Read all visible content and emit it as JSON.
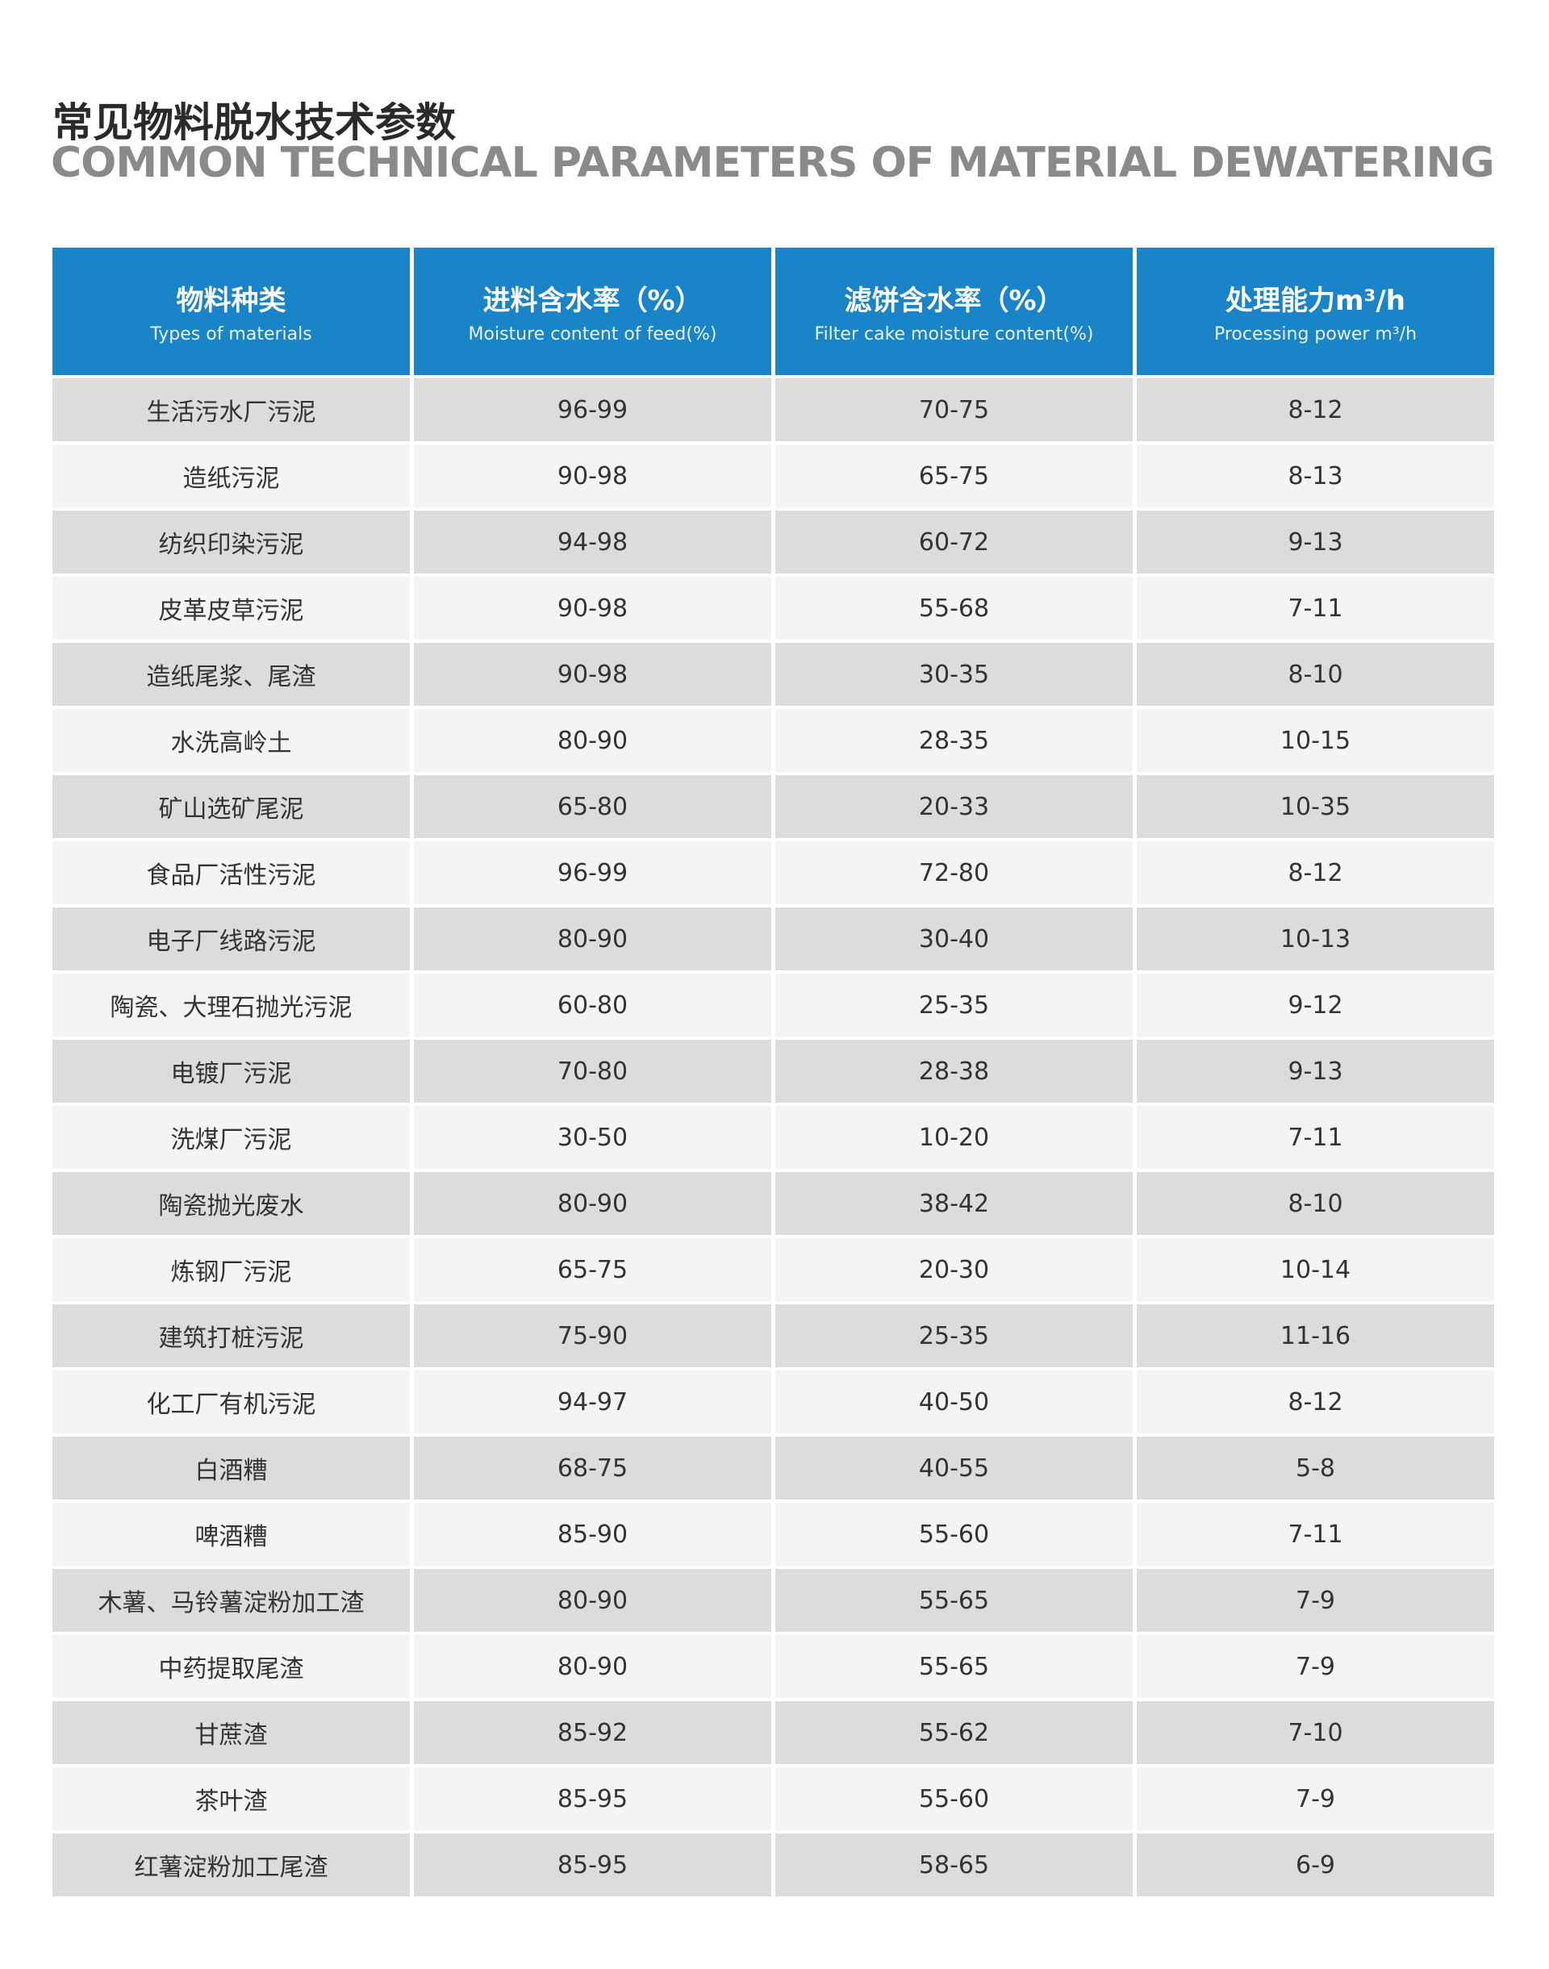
{
  "header": {
    "title": "常见物料脱水技术参数",
    "subtitle": "COMMON TECHNICAL PARAMETERS OF MATERIAL DEWATERING"
  },
  "table": {
    "columns": [
      {
        "zh": "物料种类",
        "en": "Types of materials"
      },
      {
        "zh": "进料含水率（%）",
        "en": "Moisture content of feed(%)"
      },
      {
        "zh": "滤饼含水率（%）",
        "en": "Filter cake moisture content(%)"
      },
      {
        "zh": "处理能力m³/h",
        "en": "Processing power m³/h"
      }
    ],
    "rows": [
      [
        "生活污水厂污泥",
        "96-99",
        "70-75",
        "8-12"
      ],
      [
        "造纸污泥",
        "90-98",
        "65-75",
        "8-13"
      ],
      [
        "纺织印染污泥",
        "94-98",
        "60-72",
        "9-13"
      ],
      [
        "皮革皮草污泥",
        "90-98",
        "55-68",
        "7-11"
      ],
      [
        "造纸尾浆、尾渣",
        "90-98",
        "30-35",
        "8-10"
      ],
      [
        "水洗高岭土",
        "80-90",
        "28-35",
        "10-15"
      ],
      [
        "矿山选矿尾泥",
        "65-80",
        "20-33",
        "10-35"
      ],
      [
        "食品厂活性污泥",
        "96-99",
        "72-80",
        "8-12"
      ],
      [
        "电子厂线路污泥",
        "80-90",
        "30-40",
        "10-13"
      ],
      [
        "陶瓷、大理石抛光污泥",
        "60-80",
        "25-35",
        "9-12"
      ],
      [
        "电镀厂污泥",
        "70-80",
        "28-38",
        "9-13"
      ],
      [
        "洗煤厂污泥",
        "30-50",
        "10-20",
        "7-11"
      ],
      [
        "陶瓷抛光废水",
        "80-90",
        "38-42",
        "8-10"
      ],
      [
        "炼钢厂污泥",
        "65-75",
        "20-30",
        "10-14"
      ],
      [
        "建筑打桩污泥",
        "75-90",
        "25-35",
        "11-16"
      ],
      [
        "化工厂有机污泥",
        "94-97",
        "40-50",
        "8-12"
      ],
      [
        "白酒糟",
        "68-75",
        "40-55",
        "5-8"
      ],
      [
        "啤酒糟",
        "85-90",
        "55-60",
        "7-11"
      ],
      [
        "木薯、马铃薯淀粉加工渣",
        "80-90",
        "55-65",
        "7-9"
      ],
      [
        "中药提取尾渣",
        "80-90",
        "55-65",
        "7-9"
      ],
      [
        "甘蔗渣",
        "85-92",
        "55-62",
        "7-10"
      ],
      [
        "茶叶渣",
        "85-95",
        "55-60",
        "7-9"
      ],
      [
        "红薯淀粉加工尾渣",
        "85-95",
        "58-65",
        "6-9"
      ]
    ]
  }
}
